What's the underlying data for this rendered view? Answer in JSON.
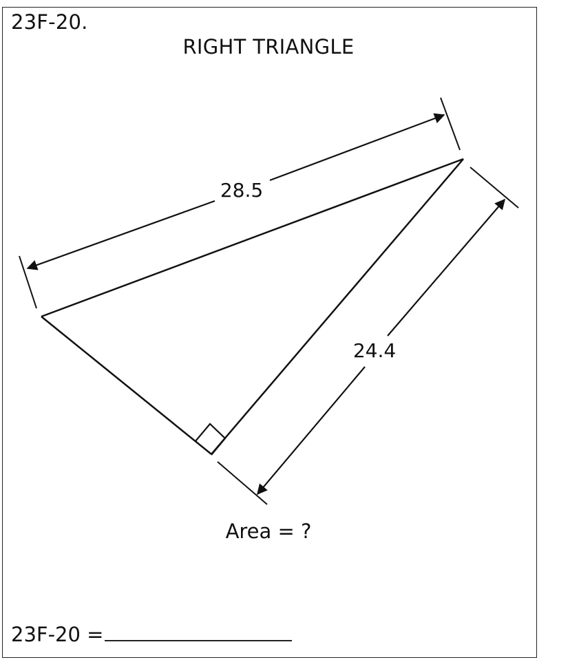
{
  "header": {
    "problem_id": "23F-20.",
    "title": "RIGHT TRIANGLE"
  },
  "figure": {
    "hypotenuse_label": "28.5",
    "leg_label": "24.4",
    "right_angle_marker": "right-angle-square"
  },
  "question": {
    "text": "Area = ?"
  },
  "answer": {
    "label": "23F-20 ="
  }
}
